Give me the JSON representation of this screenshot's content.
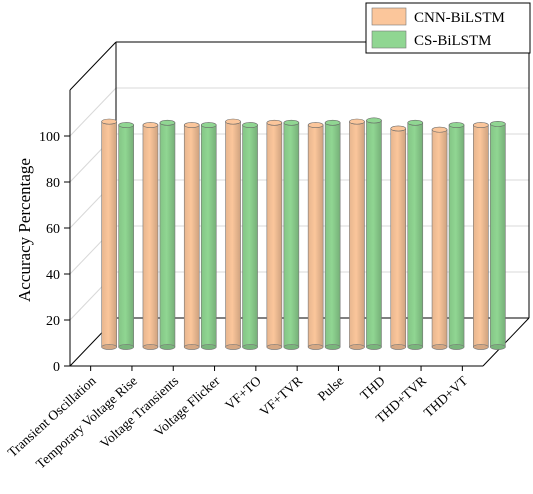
{
  "chart_data": {
    "type": "bar",
    "title": "",
    "xlabel": "",
    "ylabel": "Accuracy Percentage",
    "ylim": [
      0,
      120
    ],
    "yticks": [
      0,
      20,
      40,
      60,
      80,
      100
    ],
    "grid": true,
    "legend_position": "top-right",
    "categories": [
      "Transient Oscillation",
      "Temporary Voltage Rise",
      "Voltage Transients",
      "Voltage Flicker",
      "VF+TO",
      "VF+TVR",
      "Pulse",
      "THD",
      "THD+TVR",
      "THD+VT"
    ],
    "series": [
      {
        "name": "CNN-BiLSTM",
        "color": "#fbc69b",
        "values": [
          98,
          96.5,
          96.5,
          98,
          97.5,
          96.5,
          98,
          95,
          94.5,
          96.5
        ]
      },
      {
        "name": "CS-BiLSTM",
        "color": "#90d692",
        "values": [
          96.5,
          97.5,
          96.5,
          96.5,
          97.5,
          97.5,
          98.5,
          97.5,
          96.5,
          97
        ]
      }
    ]
  }
}
